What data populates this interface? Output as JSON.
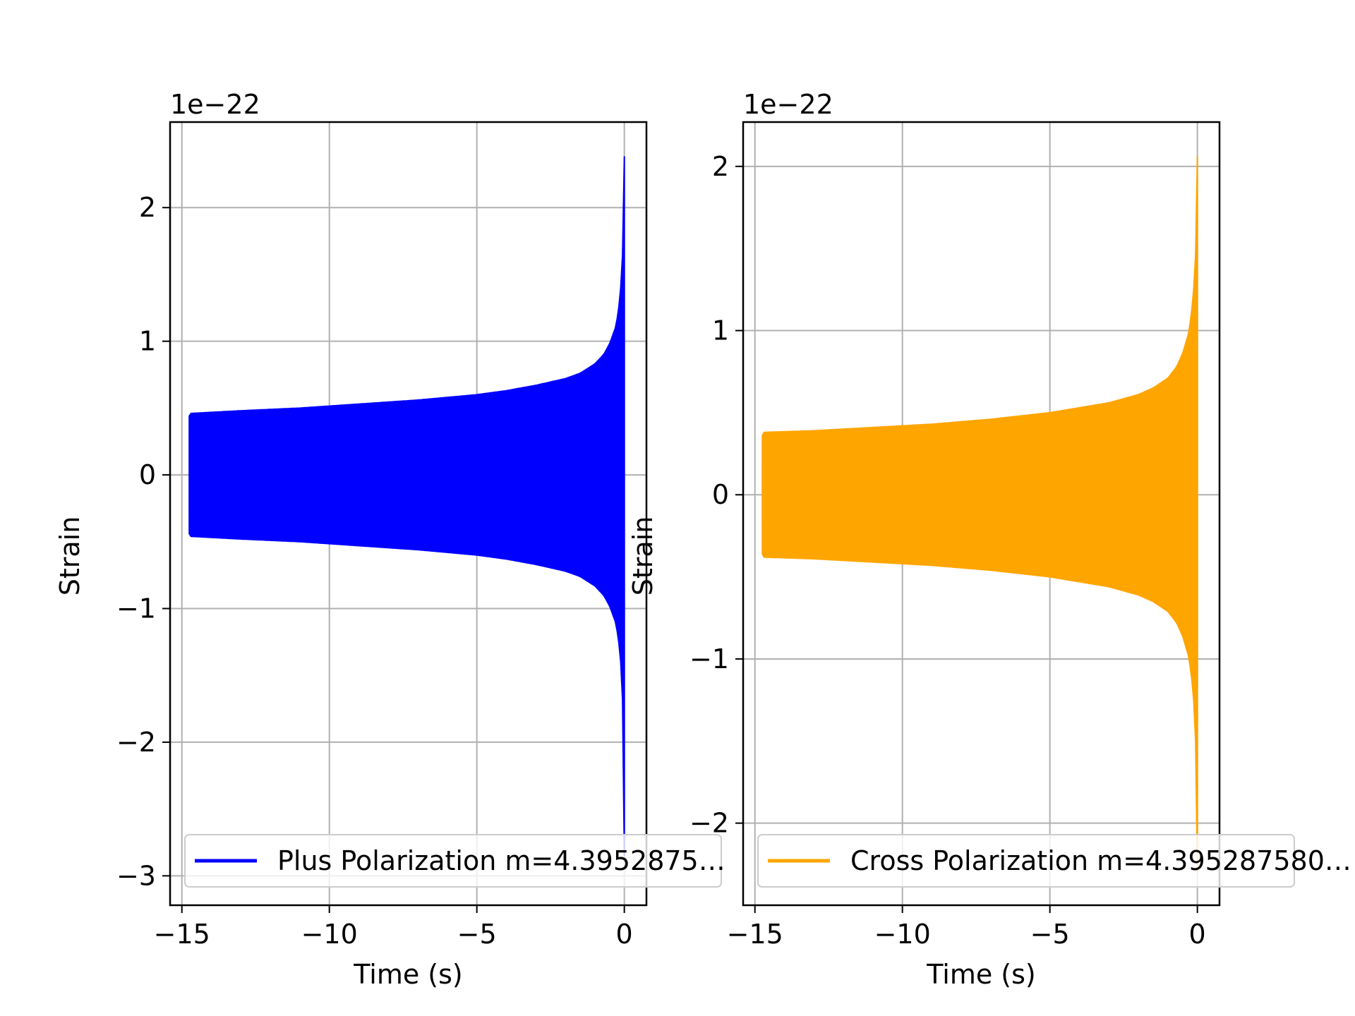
{
  "chart_data": [
    {
      "type": "line",
      "xlabel": "Time (s)",
      "ylabel": "Strain",
      "offset_text": "1e−22",
      "xlim": [
        -15.4,
        0.75
      ],
      "ylim": [
        -3.22,
        2.64
      ],
      "xticks": [
        -15,
        -10,
        -5,
        0
      ],
      "xtick_labels": [
        "−15",
        "−10",
        "−5",
        "0"
      ],
      "yticks": [
        -3,
        -2,
        -1,
        0,
        1,
        2
      ],
      "ytick_labels": [
        "−3",
        "−2",
        "−1",
        "0",
        "1",
        "2"
      ],
      "grid": true,
      "legend_position": "lower center",
      "legend_entries": [
        "Plus Polarization m=4.3952875…"
      ],
      "color": "#0000ff",
      "series": [
        {
          "name": "Plus Polarization m=4.3952875…",
          "t_start": -14.75,
          "t_end": 0,
          "envelope_t": [
            -14.75,
            -14.7,
            -13,
            -11,
            -9,
            -7,
            -5,
            -4,
            -3,
            -2,
            -1.5,
            -1,
            -0.7,
            -0.5,
            -0.3,
            -0.2,
            -0.1,
            -0.05,
            -0.02,
            0
          ],
          "envelope_upper": [
            0.44,
            0.46,
            0.48,
            0.5,
            0.53,
            0.56,
            0.6,
            0.63,
            0.67,
            0.72,
            0.76,
            0.83,
            0.9,
            0.98,
            1.1,
            1.22,
            1.45,
            1.7,
            2.05,
            2.38
          ],
          "envelope_lower": [
            -0.44,
            -0.46,
            -0.48,
            -0.5,
            -0.53,
            -0.56,
            -0.6,
            -0.63,
            -0.67,
            -0.72,
            -0.76,
            -0.83,
            -0.9,
            -0.98,
            -1.1,
            -1.22,
            -1.45,
            -1.75,
            -2.3,
            -2.85
          ]
        }
      ]
    },
    {
      "type": "line",
      "xlabel": "Time (s)",
      "ylabel": "Strain",
      "offset_text": "1e−22",
      "xlim": [
        -15.4,
        0.75
      ],
      "ylim": [
        -2.5,
        2.27
      ],
      "xticks": [
        -15,
        -10,
        -5,
        0
      ],
      "xtick_labels": [
        "−15",
        "−10",
        "−5",
        "0"
      ],
      "yticks": [
        -2,
        -1,
        0,
        1,
        2
      ],
      "ytick_labels": [
        "−2",
        "−1",
        "0",
        "1",
        "2"
      ],
      "grid": true,
      "legend_position": "lower center",
      "legend_entries": [
        "Cross Polarization m=4.395287580…"
      ],
      "color": "#ffa500",
      "series": [
        {
          "name": "Cross Polarization m=4.395287580…",
          "t_start": -14.75,
          "t_end": 0,
          "envelope_t": [
            -14.75,
            -14.7,
            -13,
            -11,
            -9,
            -7,
            -5,
            -4,
            -3,
            -2,
            -1.5,
            -1,
            -0.7,
            -0.5,
            -0.3,
            -0.2,
            -0.1,
            -0.05,
            -0.02,
            0
          ],
          "envelope_upper": [
            0.36,
            0.38,
            0.39,
            0.41,
            0.43,
            0.46,
            0.5,
            0.53,
            0.56,
            0.61,
            0.65,
            0.71,
            0.78,
            0.86,
            0.98,
            1.1,
            1.3,
            1.5,
            1.8,
            2.06
          ],
          "envelope_lower": [
            -0.36,
            -0.38,
            -0.39,
            -0.41,
            -0.43,
            -0.46,
            -0.5,
            -0.53,
            -0.56,
            -0.61,
            -0.65,
            -0.71,
            -0.78,
            -0.86,
            -0.98,
            -1.1,
            -1.3,
            -1.55,
            -1.95,
            -2.3
          ]
        }
      ]
    }
  ]
}
